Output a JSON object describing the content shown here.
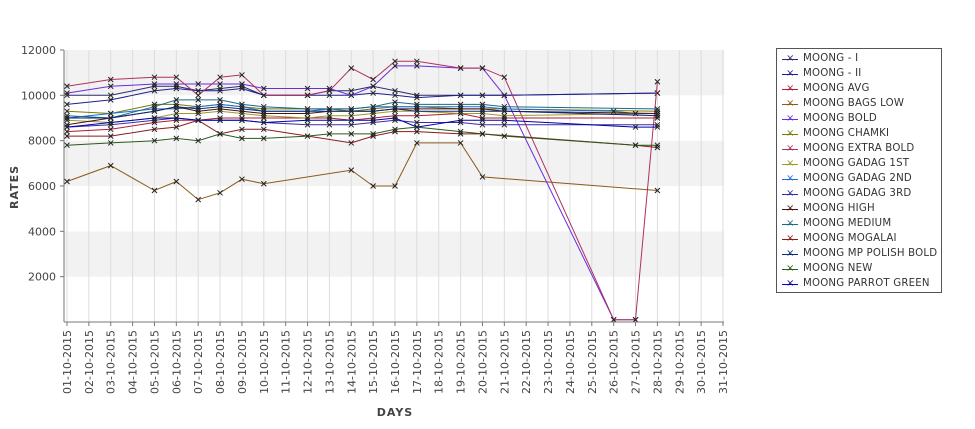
{
  "chart_data": {
    "type": "line",
    "xlabel": "DAYS",
    "ylabel": "RATES",
    "ylim": [
      0,
      12000
    ],
    "yticks": [
      2000,
      4000,
      6000,
      8000,
      10000,
      12000
    ],
    "grid": "alternating horizontal bands, vertical gridlines",
    "legend_position": "right",
    "x": [
      "01-10-2015",
      "02-10-2015",
      "03-10-2015",
      "04-10-2015",
      "05-10-2015",
      "06-10-2015",
      "07-10-2015",
      "08-10-2015",
      "09-10-2015",
      "10-10-2015",
      "11-10-2015",
      "12-10-2015",
      "13-10-2015",
      "14-10-2015",
      "15-10-2015",
      "16-10-2015",
      "17-10-2015",
      "18-10-2015",
      "19-10-2015",
      "20-10-2015",
      "21-10-2015",
      "22-10-2015",
      "23-10-2015",
      "24-10-2015",
      "25-10-2015",
      "26-10-2015",
      "27-10-2015",
      "28-10-2015",
      "29-10-2015",
      "30-10-2015",
      "31-10-2015"
    ],
    "series": [
      {
        "name": "MOONG - I",
        "color": "#2b2b6b",
        "values": [
          10000,
          null,
          10000,
          null,
          10400,
          10400,
          10200,
          10300,
          10400,
          10000,
          null,
          10000,
          10200,
          10200,
          10400,
          10200,
          10000,
          null,
          10000,
          10000,
          10000,
          null,
          null,
          null,
          null,
          null,
          null,
          10100,
          null,
          null,
          null
        ]
      },
      {
        "name": "MOONG - II",
        "color": "#1f1f8f",
        "values": [
          9600,
          null,
          9800,
          null,
          10200,
          10300,
          10200,
          10200,
          10300,
          10000,
          null,
          10000,
          10000,
          10000,
          10100,
          10000,
          9900,
          null,
          10000,
          10000,
          10000,
          null,
          null,
          null,
          null,
          null,
          null,
          10100,
          null,
          null,
          null
        ]
      },
      {
        "name": "MOONG AVG",
        "color": "#b01c2e",
        "values": [
          8400,
          null,
          8500,
          null,
          8800,
          8900,
          8900,
          9000,
          9000,
          9000,
          null,
          9000,
          9000,
          8900,
          9000,
          9100,
          9100,
          null,
          9200,
          9000,
          9000,
          null,
          null,
          null,
          null,
          null,
          null,
          9000,
          null,
          null,
          null
        ]
      },
      {
        "name": "MOONG BAGS LOW",
        "color": "#8a5a1a",
        "values": [
          6200,
          null,
          6900,
          null,
          5800,
          6200,
          5400,
          5700,
          6300,
          6100,
          null,
          null,
          null,
          6700,
          6000,
          6000,
          7900,
          null,
          7900,
          6400,
          null,
          null,
          null,
          null,
          null,
          null,
          null,
          5800,
          null,
          null,
          null
        ]
      },
      {
        "name": "MOONG BOLD",
        "color": "#6a2be2",
        "values": [
          10100,
          null,
          10400,
          null,
          10500,
          10500,
          10500,
          10500,
          10500,
          10300,
          null,
          10300,
          10300,
          10000,
          10400,
          11300,
          11300,
          null,
          11200,
          11200,
          10000,
          null,
          null,
          null,
          null,
          100,
          100,
          null,
          null,
          null,
          null
        ]
      },
      {
        "name": "MOONG CHAMKI",
        "color": "#7a7a00",
        "values": [
          9300,
          null,
          9200,
          null,
          9600,
          9600,
          9500,
          9600,
          9500,
          9400,
          null,
          9400,
          9400,
          9300,
          9400,
          9500,
          9500,
          null,
          9400,
          9400,
          9400,
          null,
          null,
          null,
          null,
          null,
          null,
          9300,
          null,
          null,
          null
        ]
      },
      {
        "name": "MOONG EXTRA BOLD",
        "color": "#b03060",
        "values": [
          10400,
          null,
          10700,
          null,
          10800,
          10800,
          10000,
          10800,
          10900,
          10000,
          null,
          10000,
          10200,
          11200,
          10700,
          11500,
          11500,
          null,
          11200,
          11200,
          10800,
          null,
          null,
          null,
          null,
          100,
          100,
          10600,
          null,
          null,
          null
        ]
      },
      {
        "name": "MOONG GADAG 1ST",
        "color": "#9a9a2a",
        "values": [
          8900,
          null,
          8800,
          null,
          9000,
          9200,
          9200,
          9300,
          9200,
          9100,
          null,
          9000,
          9100,
          9100,
          9200,
          9300,
          9300,
          null,
          9200,
          9200,
          9100,
          null,
          null,
          null,
          null,
          null,
          null,
          9200,
          null,
          null,
          null
        ]
      },
      {
        "name": "MOONG GADAG 2ND",
        "color": "#1e6fd6",
        "values": [
          9000,
          null,
          9200,
          null,
          9400,
          9400,
          9500,
          9600,
          9500,
          9300,
          null,
          9300,
          9400,
          9400,
          9500,
          9500,
          9500,
          null,
          9500,
          9500,
          9400,
          null,
          null,
          null,
          null,
          9300,
          9200,
          9200,
          null,
          null,
          null
        ]
      },
      {
        "name": "MOONG GADAG 3RD",
        "color": "#3a2ba0",
        "values": [
          8600,
          null,
          8700,
          null,
          8900,
          9000,
          8900,
          8900,
          8900,
          8800,
          null,
          8700,
          8700,
          8700,
          8800,
          8900,
          8800,
          null,
          8800,
          8700,
          8700,
          null,
          null,
          null,
          null,
          null,
          null,
          8700,
          null,
          null,
          null
        ]
      },
      {
        "name": "MOONG HIGH",
        "color": "#4a1010",
        "values": [
          8700,
          null,
          9000,
          null,
          9300,
          9500,
          9300,
          9400,
          9300,
          9200,
          null,
          9200,
          9300,
          9300,
          9300,
          9400,
          9400,
          null,
          9400,
          9400,
          9300,
          null,
          null,
          null,
          null,
          null,
          null,
          9200,
          null,
          null,
          null
        ]
      },
      {
        "name": "MOONG MEDIUM",
        "color": "#1a6a8a",
        "values": [
          9100,
          null,
          9000,
          null,
          9500,
          9800,
          9800,
          9800,
          9600,
          9500,
          null,
          9400,
          9400,
          9400,
          9500,
          9700,
          9600,
          null,
          9600,
          9600,
          9500,
          null,
          null,
          null,
          null,
          null,
          null,
          9400,
          null,
          null,
          null
        ]
      },
      {
        "name": "MOONG MOGALAI",
        "color": "#8b1a1a",
        "values": [
          8200,
          null,
          8200,
          null,
          8500,
          8600,
          8900,
          8300,
          8500,
          8500,
          null,
          null,
          null,
          7900,
          8200,
          8400,
          8400,
          null,
          8300,
          8300,
          null,
          null,
          null,
          null,
          null,
          null,
          7800,
          7700,
          null,
          null,
          null
        ]
      },
      {
        "name": "MOONG MP POLISH BOLD",
        "color": "#0a2a7a",
        "values": [
          9000,
          null,
          9000,
          null,
          9300,
          9500,
          9400,
          9500,
          9400,
          9300,
          null,
          9300,
          9300,
          9300,
          9300,
          9400,
          9300,
          null,
          9300,
          9300,
          9300,
          null,
          null,
          null,
          null,
          null,
          null,
          9100,
          null,
          null,
          null
        ]
      },
      {
        "name": "MOONG NEW",
        "color": "#2a5a1a",
        "values": [
          7800,
          null,
          7900,
          null,
          8000,
          8100,
          8000,
          8300,
          8100,
          8100,
          null,
          8200,
          8300,
          8300,
          8300,
          8500,
          8600,
          null,
          8400,
          8300,
          8200,
          null,
          null,
          null,
          null,
          null,
          7800,
          7800,
          null,
          null,
          null
        ]
      },
      {
        "name": "MOONG PARROT GREEN",
        "color": "#0000b0",
        "values": [
          8600,
          null,
          8800,
          null,
          9000,
          9000,
          8900,
          8900,
          8900,
          8800,
          null,
          8900,
          8900,
          8900,
          8900,
          9000,
          8600,
          null,
          8900,
          8900,
          8900,
          null,
          null,
          null,
          null,
          null,
          8600,
          8600,
          null,
          null,
          null
        ]
      }
    ]
  }
}
